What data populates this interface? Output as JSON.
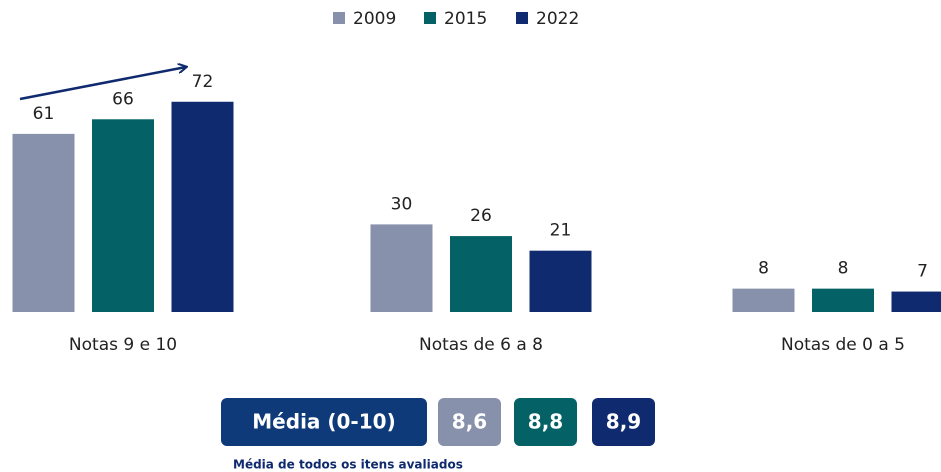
{
  "chart_data": {
    "type": "bar",
    "categories": [
      "Notas 9 e 10",
      "Notas de 6 a 8",
      "Notas de 0 a 5"
    ],
    "series": [
      {
        "name": "2009",
        "color": "#8791ab",
        "values": [
          61,
          30,
          8
        ]
      },
      {
        "name": "2015",
        "color": "#046267",
        "values": [
          66,
          26,
          8
        ]
      },
      {
        "name": "2022",
        "color": "#0f2a6e",
        "values": [
          72,
          21,
          7
        ]
      }
    ],
    "legend": "top",
    "averages": {
      "label": "Média (0-10)",
      "values": [
        {
          "value": 8.6,
          "label": "8,6"
        },
        {
          "value": 8.8,
          "label": "8,8"
        },
        {
          "value": 8.9,
          "label": "8,9"
        }
      ],
      "note": "Média de todos os itens avaliados"
    }
  }
}
